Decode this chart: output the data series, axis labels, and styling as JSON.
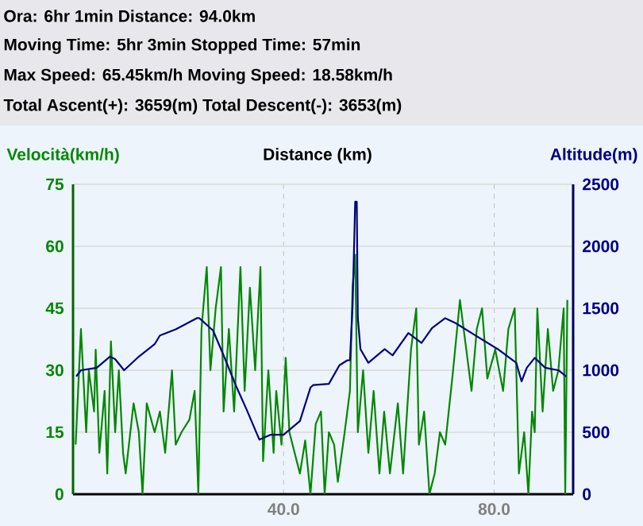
{
  "chart_data": {
    "type": "line",
    "xlabel": "Distance (km)",
    "ylabel": "Velocità(km/h)",
    "y2label": "Altitude(m)",
    "annotations": [
      "Ora: 6hr 1min  Distance: 94.0km",
      "Moving Time: 5hr 3min  Stopped Time: 57min",
      "Max Speed: 65.45km/h  Moving Speed: 18.58km/h",
      "Total Ascent(+): 3659(m)  Total Descent(-): 3653(m)"
    ],
    "xlim": [
      0,
      95
    ],
    "xticks": [
      {
        "value": 40,
        "label": "40.0"
      },
      {
        "value": 80,
        "label": "80.0"
      }
    ],
    "ylim": [
      0,
      75
    ],
    "yticks": [
      0,
      15,
      30,
      45,
      60,
      75
    ],
    "y2lim": [
      0,
      2500
    ],
    "y2ticks": [
      0,
      500,
      1000,
      1500,
      2000,
      2500
    ],
    "grid": true,
    "series": [
      {
        "color": "#008800",
        "x": [
          0.5,
          1.5,
          2.5,
          3.0,
          4.0,
          4.3,
          5.0,
          6.0,
          6.5,
          7.2,
          8.0,
          8.7,
          9.5,
          10.0,
          11.5,
          12.5,
          13.2,
          14.0,
          15.5,
          16.5,
          17.5,
          18.8,
          19.5,
          20.6,
          22.1,
          23.1,
          23.8,
          24.4,
          25.4,
          26.1,
          27.1,
          28.1,
          28.6,
          29.6,
          30.6,
          31.8,
          32.6,
          33.6,
          34.6,
          35.6,
          36.1,
          37.1,
          38.1,
          38.6,
          39.6,
          40.4,
          41.1,
          42.1,
          43.1,
          44.1,
          45.1,
          46.1,
          47.1,
          47.8,
          48.6,
          49.6,
          50.3,
          51.6,
          52.6,
          53.1,
          53.6,
          54.1,
          55.1,
          56.1,
          57.1,
          58.2,
          59.1,
          60.2,
          61.7,
          62.7,
          64.2,
          65.2,
          65.7,
          66.7,
          67.7,
          68.7,
          69.7,
          70.7,
          72.2,
          73.5,
          74.7,
          75.7,
          76.7,
          77.7,
          78.7,
          80.2,
          81.7,
          82.7,
          83.9,
          84.7,
          85.7,
          86.5,
          87.2,
          87.7,
          88.2,
          89.2,
          90.2,
          91.2,
          92.2,
          93.2,
          93.5,
          93.9
        ],
        "values": [
          12,
          40,
          15,
          30,
          20,
          35,
          10,
          25,
          5,
          37,
          15,
          30,
          10,
          5,
          22,
          15,
          0,
          22,
          15,
          20,
          10,
          30,
          12,
          15,
          18,
          25,
          0,
          40,
          55,
          30,
          45,
          55,
          20,
          40,
          20,
          55,
          25,
          50,
          30,
          55,
          8,
          30,
          10,
          25,
          12,
          33,
          15,
          10,
          5,
          13,
          0,
          17,
          20,
          0,
          15,
          12,
          3,
          15,
          25,
          50,
          58,
          15,
          30,
          10,
          25,
          5,
          20,
          5,
          22,
          5,
          35,
          45,
          12,
          20,
          0,
          5,
          15,
          12,
          30,
          47,
          35,
          25,
          40,
          45,
          28,
          35,
          25,
          40,
          45,
          5,
          15,
          0,
          20,
          15,
          45,
          20,
          40,
          25,
          30,
          45,
          0,
          47
        ]
      },
      {
        "color": "#000080",
        "axis": "y2",
        "x": [
          0.6,
          1.5,
          4.5,
          7.0,
          8.0,
          9.7,
          12.5,
          15.5,
          16.5,
          19.5,
          23.5,
          24.0,
          26.6,
          28.6,
          31.0,
          33.0,
          35.4,
          37.6,
          40.0,
          43.1,
          45.1,
          45.6,
          48.6,
          50.6,
          52.1,
          52.6,
          53.1,
          53.6,
          53.9,
          54.1,
          54.6,
          56.1,
          59.2,
          60.7,
          63.7,
          66.2,
          68.2,
          70.7,
          72.7,
          75.7,
          80.7,
          84.2,
          85.2,
          86.2,
          87.7,
          89.7,
          92.2,
          93.7
        ],
        "values": [
          950,
          1000,
          1020,
          1110,
          1090,
          1000,
          1110,
          1210,
          1280,
          1330,
          1420,
          1420,
          1320,
          1120,
          870,
          680,
          440,
          480,
          480,
          590,
          860,
          880,
          890,
          1040,
          1080,
          1080,
          1510,
          2360,
          2360,
          1420,
          1170,
          1060,
          1170,
          1120,
          1300,
          1220,
          1340,
          1420,
          1380,
          1300,
          1170,
          1060,
          910,
          1020,
          1100,
          1020,
          1000,
          950
        ]
      }
    ]
  }
}
